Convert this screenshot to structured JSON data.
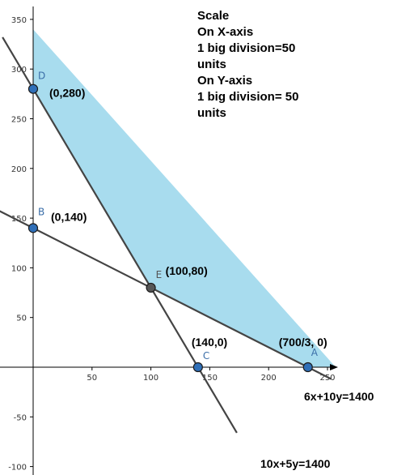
{
  "scale_note": {
    "lines": [
      "Scale",
      "On X-axis",
      "1 big division=50",
      "units",
      "On Y-axis",
      "1 big division= 50",
      "units"
    ]
  },
  "colors": {
    "feasible_region": "#a8dcee",
    "line": "#444444",
    "point_blue": "#2f6fb8",
    "point_dark": "#555555",
    "axis": "#000000"
  },
  "chart_data": {
    "type": "line",
    "title": "",
    "xlabel": "",
    "ylabel": "",
    "xlim": [
      -28,
      262
    ],
    "ylim": [
      -105,
      352
    ],
    "grid": false,
    "x_ticks": [
      50,
      100,
      150,
      200,
      250
    ],
    "y_ticks": [
      -100,
      -50,
      50,
      100,
      150,
      200,
      250,
      300,
      350
    ],
    "lines": [
      {
        "equation": "10x+5y=1400",
        "points": [
          [
            -26,
            332
          ],
          [
            173,
            -66
          ]
        ]
      },
      {
        "equation": "6x+10y=1400",
        "points": [
          [
            -40,
            164
          ],
          [
            253,
            -11.8
          ]
        ]
      }
    ],
    "feasible_region": [
      [
        0,
        340
      ],
      [
        0,
        280
      ],
      [
        100,
        80
      ],
      [
        233.33,
        0
      ],
      [
        257,
        0
      ]
    ],
    "points": [
      {
        "letter": "A",
        "label": "(700/3, 0)",
        "x": 233.33,
        "y": 0,
        "style": "blue"
      },
      {
        "letter": "B",
        "label": "(0,140)",
        "x": 0,
        "y": 140,
        "style": "blue"
      },
      {
        "letter": "C",
        "label": "(140,0)",
        "x": 140,
        "y": 0,
        "style": "blue"
      },
      {
        "letter": "D",
        "label": "(0,280)",
        "x": 0,
        "y": 280,
        "style": "blue"
      },
      {
        "letter": "E",
        "label": "(100,80)",
        "x": 100,
        "y": 80,
        "style": "dark"
      }
    ]
  }
}
